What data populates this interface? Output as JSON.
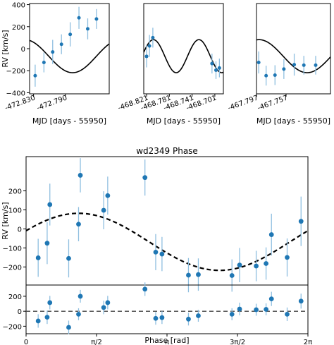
{
  "chart_data": [
    {
      "type": "scatter",
      "panel": "top-1",
      "xlabel": "MJD [days - 55950]",
      "ylabel": "RV [km/s]",
      "xlim": [
        -472.835,
        -472.735
      ],
      "ylim": [
        -410,
        410
      ],
      "xticks": [
        -472.83,
        -472.79
      ],
      "xtick_labels": [
        "-472.830",
        "-472.790"
      ],
      "yticks": [
        -400,
        -200,
        0,
        200,
        400
      ],
      "ytick_labels": [
        "−400",
        "−200",
        "0",
        "200",
        "400"
      ],
      "points": [
        {
          "x": -472.828,
          "y": -245,
          "err": 100
        },
        {
          "x": -472.817,
          "y": -125,
          "err": 90
        },
        {
          "x": -472.806,
          "y": -30,
          "err": 110
        },
        {
          "x": -472.795,
          "y": 40,
          "err": 90
        },
        {
          "x": -472.784,
          "y": 130,
          "err": 110
        },
        {
          "x": -472.773,
          "y": 280,
          "err": 100
        },
        {
          "x": -472.762,
          "y": 180,
          "err": 95
        },
        {
          "x": -472.751,
          "y": 270,
          "err": 90
        }
      ],
      "model": {
        "phase0": -472.871,
        "period": 0.12,
        "amplitude": 150,
        "offset": -68
      }
    },
    {
      "type": "scatter",
      "panel": "top-2",
      "xlabel": "MJD [days - 55950]",
      "ylabel": "",
      "xlim": [
        -468.826,
        -468.686
      ],
      "ylim": [
        -410,
        410
      ],
      "xticks": [
        -468.821,
        -468.781,
        -468.741,
        -468.701
      ],
      "xtick_labels": [
        "-468.821",
        "-468.781",
        "-468.741",
        "-468.701"
      ],
      "points": [
        {
          "x": -468.821,
          "y": -70,
          "err": 100
        },
        {
          "x": -468.816,
          "y": 25,
          "err": 100
        },
        {
          "x": -468.81,
          "y": 100,
          "err": 90
        },
        {
          "x": -468.706,
          "y": -135,
          "err": 90
        },
        {
          "x": -468.699,
          "y": -195,
          "err": 80
        },
        {
          "x": -468.693,
          "y": -175,
          "err": 85
        }
      ],
      "model": {
        "phase0": -468.829,
        "period": 0.08,
        "amplitude": 150,
        "offset": -68
      }
    },
    {
      "type": "scatter",
      "panel": "top-3",
      "xlabel": "MJD [days - 55950]",
      "ylabel": "",
      "xlim": [
        -467.797,
        -467.697
      ],
      "ylim": [
        -410,
        410
      ],
      "xticks": [
        -467.797,
        -467.757
      ],
      "xtick_labels": [
        "-467.797",
        "-467.757"
      ],
      "points": [
        {
          "x": -467.794,
          "y": -125,
          "err": 100
        },
        {
          "x": -467.784,
          "y": -245,
          "err": 90
        },
        {
          "x": -467.772,
          "y": -240,
          "err": 90
        },
        {
          "x": -467.76,
          "y": -185,
          "err": 90
        },
        {
          "x": -467.746,
          "y": -145,
          "err": 100
        },
        {
          "x": -467.733,
          "y": -150,
          "err": 85
        },
        {
          "x": -467.717,
          "y": -150,
          "err": 85
        }
      ],
      "model": {
        "phase0": -467.826,
        "period": 0.13,
        "amplitude": 150,
        "offset": -68
      }
    },
    {
      "type": "scatter",
      "panel": "phase",
      "title": "wd2349 Phase",
      "xlabel": "",
      "ylabel": "RV [km/s]",
      "xlim": [
        0,
        6.2832
      ],
      "ylim": [
        -295,
        380
      ],
      "yticks": [
        -200,
        -100,
        0,
        100,
        200
      ],
      "ytick_labels": [
        "−200",
        "−100",
        "0",
        "100",
        "200"
      ],
      "points": [
        {
          "x": 0.27,
          "y": -152,
          "err": 100
        },
        {
          "x": 0.47,
          "y": -75,
          "err": 110
        },
        {
          "x": 0.53,
          "y": 128,
          "err": 110
        },
        {
          "x": 0.95,
          "y": -155,
          "err": 100
        },
        {
          "x": 1.17,
          "y": 25,
          "err": 90
        },
        {
          "x": 1.21,
          "y": 282,
          "err": 90
        },
        {
          "x": 1.73,
          "y": 98,
          "err": 100
        },
        {
          "x": 1.82,
          "y": 175,
          "err": 100
        },
        {
          "x": 2.65,
          "y": 270,
          "err": 95
        },
        {
          "x": 2.89,
          "y": -122,
          "err": 95
        },
        {
          "x": 3.03,
          "y": -132,
          "err": 90
        },
        {
          "x": 3.62,
          "y": -243,
          "err": 90
        },
        {
          "x": 3.84,
          "y": -240,
          "err": 85
        },
        {
          "x": 4.59,
          "y": -245,
          "err": 85
        },
        {
          "x": 4.76,
          "y": -190,
          "err": 90
        },
        {
          "x": 5.13,
          "y": -195,
          "err": 80
        },
        {
          "x": 5.35,
          "y": -182,
          "err": 85
        },
        {
          "x": 5.47,
          "y": -30,
          "err": 110
        },
        {
          "x": 5.82,
          "y": -150,
          "err": 100
        },
        {
          "x": 6.13,
          "y": 40,
          "err": 130
        }
      ],
      "model": {
        "amplitude": 150,
        "offset": -68,
        "phase_shift": 0.4
      }
    },
    {
      "type": "scatter",
      "panel": "residual",
      "xlabel": "Phase [rad]",
      "ylabel": "",
      "xlim": [
        0,
        6.2832
      ],
      "ylim": [
        -300,
        350
      ],
      "xticks": [
        0,
        1.5708,
        3.1416,
        4.7124,
        6.2832
      ],
      "xtick_labels": [
        "0",
        "π/2",
        "π",
        "3π/2",
        "2π"
      ],
      "yticks": [
        -200,
        0,
        200
      ],
      "ytick_labels": [
        "−200",
        "0",
        "200"
      ],
      "points": [
        {
          "x": 0.27,
          "y": -130,
          "err": 90
        },
        {
          "x": 0.47,
          "y": -80,
          "err": 90
        },
        {
          "x": 0.53,
          "y": 115,
          "err": 90
        },
        {
          "x": 0.95,
          "y": -215,
          "err": 90
        },
        {
          "x": 1.17,
          "y": -40,
          "err": 80
        },
        {
          "x": 1.21,
          "y": 200,
          "err": 85
        },
        {
          "x": 1.73,
          "y": 50,
          "err": 90
        },
        {
          "x": 1.82,
          "y": 115,
          "err": 90
        },
        {
          "x": 2.65,
          "y": 295,
          "err": 90
        },
        {
          "x": 2.89,
          "y": -95,
          "err": 85
        },
        {
          "x": 3.03,
          "y": -85,
          "err": 85
        },
        {
          "x": 3.62,
          "y": -105,
          "err": 85
        },
        {
          "x": 3.84,
          "y": -60,
          "err": 80
        },
        {
          "x": 4.59,
          "y": -40,
          "err": 80
        },
        {
          "x": 4.76,
          "y": 30,
          "err": 85
        },
        {
          "x": 5.13,
          "y": 20,
          "err": 80
        },
        {
          "x": 5.35,
          "y": 25,
          "err": 80
        },
        {
          "x": 5.47,
          "y": 165,
          "err": 95
        },
        {
          "x": 5.82,
          "y": -40,
          "err": 90
        },
        {
          "x": 6.13,
          "y": 135,
          "err": 100
        }
      ],
      "model": {
        "zero_line": 0
      }
    }
  ]
}
